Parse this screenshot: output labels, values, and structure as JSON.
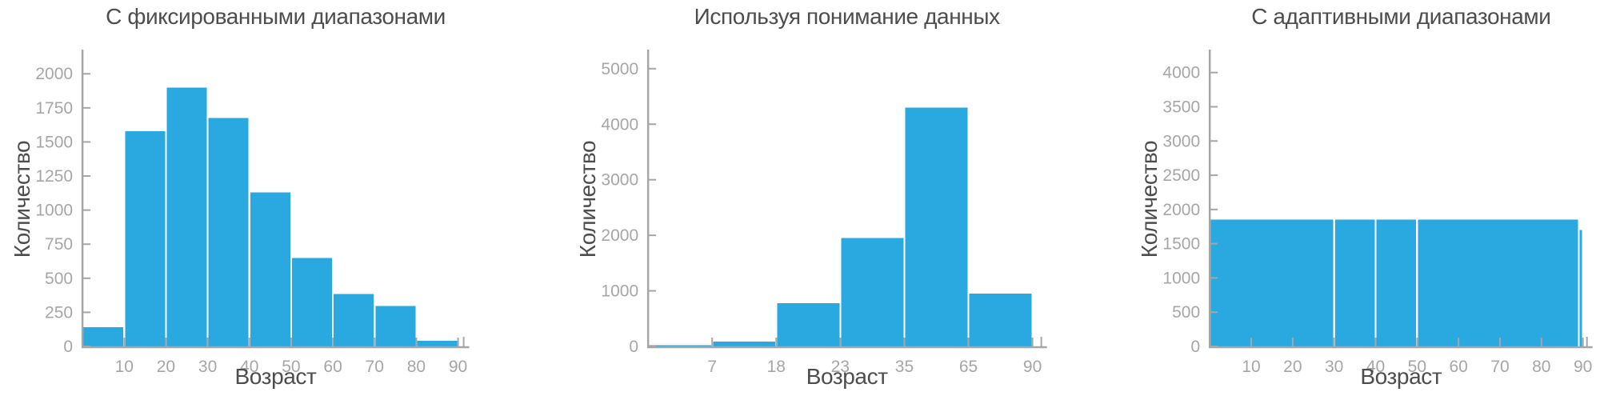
{
  "colors": {
    "bar": "#29a9e0",
    "axis": "#a6a6a6",
    "tick_label": "#a6a6a6",
    "text": "#4d4d4d",
    "background": "#ffffff"
  },
  "chart_data": [
    {
      "type": "bar",
      "title": "С фиксированными диапазонами",
      "xlabel": "Возраст",
      "ylabel": "Количество",
      "bin_edges": [
        0,
        10,
        20,
        30,
        40,
        50,
        60,
        70,
        80,
        90
      ],
      "counts": [
        140,
        1580,
        1900,
        1675,
        1130,
        650,
        385,
        295,
        40
      ],
      "x_ticks": [
        10,
        20,
        30,
        40,
        50,
        60,
        70,
        80,
        90
      ],
      "y_ticks": [
        0,
        250,
        500,
        750,
        1000,
        1250,
        1500,
        1750,
        2000
      ],
      "xlim": [
        0,
        90
      ],
      "ylim": [
        0,
        2160
      ],
      "equal_width_bins": false,
      "grid": false,
      "legend": false,
      "bar_color": "#29a9e0"
    },
    {
      "type": "bar",
      "title": "Используя понимание данных",
      "xlabel": "Возраст",
      "ylabel": "Количество",
      "bin_edges": [
        0,
        7,
        18,
        23,
        35,
        65,
        90
      ],
      "counts": [
        25,
        90,
        780,
        1950,
        4300,
        950
      ],
      "x_ticks": [
        7,
        18,
        23,
        35,
        65,
        90
      ],
      "y_ticks": [
        0,
        1000,
        2000,
        3000,
        4000,
        5000
      ],
      "xlim": [
        0,
        90
      ],
      "ylim": [
        0,
        5300
      ],
      "equal_width_bins": true,
      "grid": false,
      "legend": false,
      "bar_color": "#29a9e0"
    },
    {
      "type": "bar",
      "title": "С адаптивными диапазонами",
      "xlabel": "Возраст",
      "ylabel": "Количество",
      "bin_edges": [
        0,
        30,
        40,
        50,
        89,
        90
      ],
      "counts": [
        1850,
        1850,
        1850,
        1850,
        1700
      ],
      "x_ticks": [
        10,
        20,
        30,
        40,
        50,
        60,
        70,
        80,
        90
      ],
      "y_ticks": [
        0,
        500,
        1000,
        1500,
        2000,
        2500,
        3000,
        3500,
        4000
      ],
      "xlim": [
        0,
        90
      ],
      "ylim": [
        0,
        4300
      ],
      "equal_width_bins": false,
      "grid": false,
      "legend": false,
      "bar_color": "#29a9e0"
    }
  ]
}
